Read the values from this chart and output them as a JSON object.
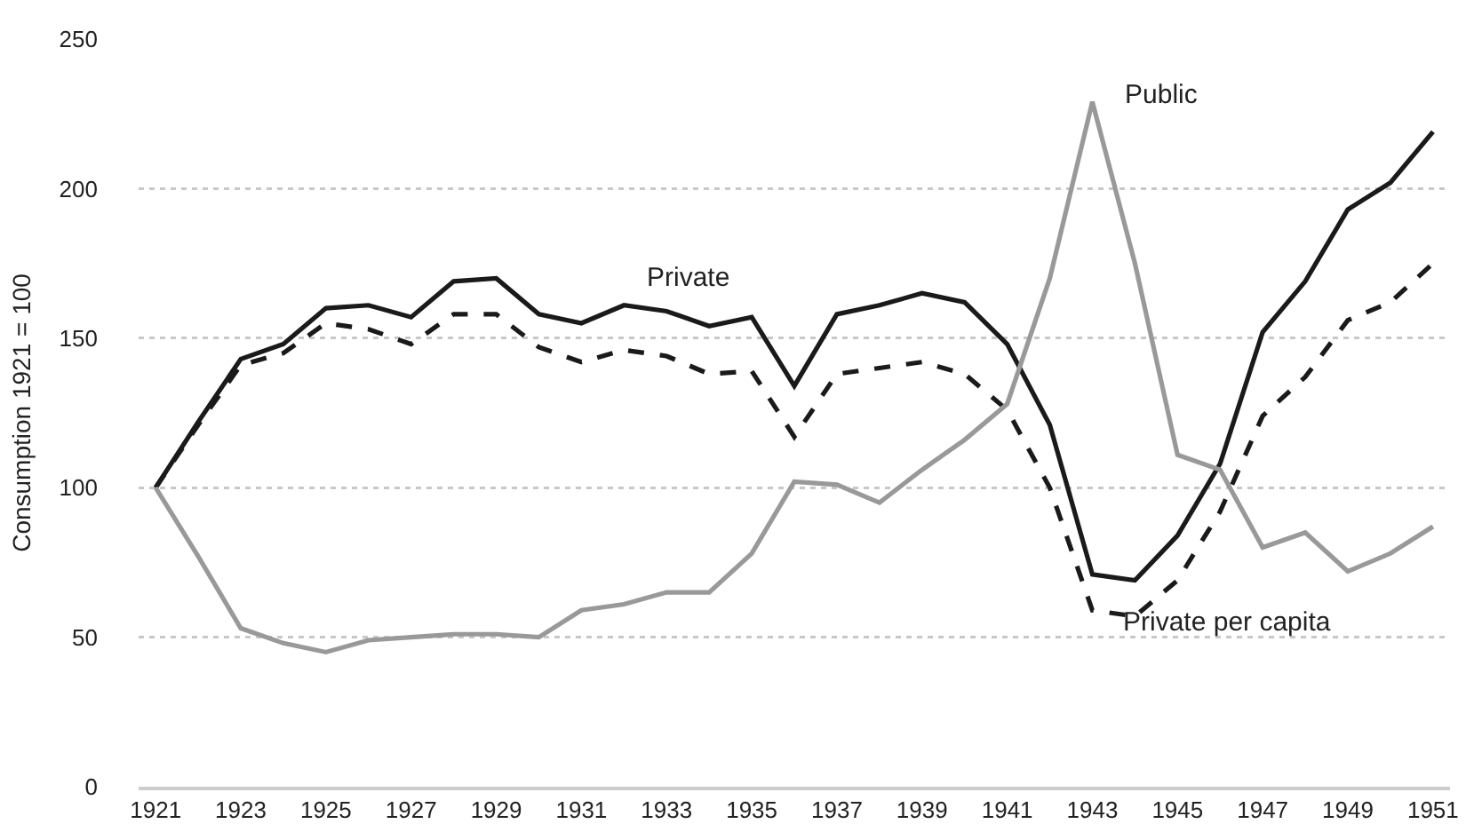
{
  "chart_data": {
    "type": "line",
    "ylabel": "Consumption 1921 = 100",
    "x": [
      1921,
      1922,
      1923,
      1924,
      1925,
      1926,
      1927,
      1928,
      1929,
      1930,
      1931,
      1932,
      1933,
      1934,
      1935,
      1936,
      1937,
      1938,
      1939,
      1940,
      1941,
      1942,
      1943,
      1944,
      1945,
      1946,
      1947,
      1948,
      1949,
      1950,
      1951
    ],
    "series": [
      {
        "name": "Private",
        "color": "#1a1a1a",
        "line_style": "solid",
        "values": [
          100,
          122,
          143,
          148,
          160,
          161,
          157,
          169,
          170,
          158,
          155,
          161,
          159,
          154,
          157,
          134,
          158,
          161,
          165,
          162,
          148,
          121,
          71,
          69,
          84,
          108,
          152,
          169,
          193,
          202,
          219
        ]
      },
      {
        "name": "Private per capita",
        "color": "#1a1a1a",
        "line_style": "dashed",
        "values": [
          100,
          121,
          141,
          145,
          155,
          153,
          148,
          158,
          158,
          147,
          142,
          146,
          144,
          138,
          139,
          117,
          138,
          140,
          142,
          138,
          126,
          100,
          59,
          57,
          69,
          92,
          124,
          137,
          156,
          162,
          175
        ]
      },
      {
        "name": "Public",
        "color": "#999999",
        "line_style": "solid",
        "values": [
          100,
          77,
          53,
          48,
          45,
          49,
          50,
          51,
          51,
          50,
          59,
          61,
          65,
          65,
          78,
          102,
          101,
          95,
          106,
          116,
          128,
          170,
          229,
          175,
          111,
          106,
          80,
          85,
          72,
          78,
          87
        ]
      }
    ],
    "xlim": [
      1920.6,
      1951.4
    ],
    "xticks": [
      1921,
      1923,
      1925,
      1927,
      1929,
      1931,
      1933,
      1935,
      1937,
      1939,
      1941,
      1943,
      1945,
      1947,
      1949,
      1951
    ],
    "ylim": [
      0,
      250
    ],
    "yticks": [
      0,
      50,
      100,
      150,
      200,
      250
    ],
    "grid": "y",
    "legend": false,
    "marker": "none"
  }
}
